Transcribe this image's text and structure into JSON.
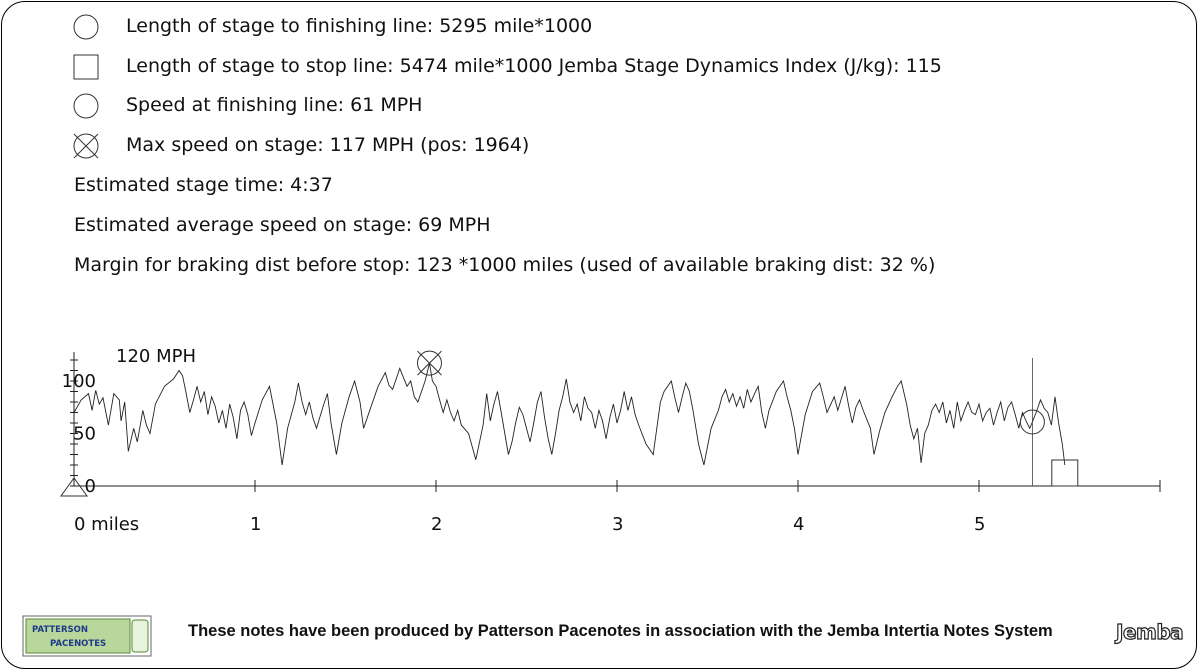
{
  "legend": {
    "finish_length": "Length of stage to finishing line: 5295 mile*1000",
    "stop_length": "Length of stage to stop line: 5474 mile*1000 Jemba Stage Dynamics Index (J/kg): 115",
    "finish_speed": "Speed at finishing line: 61 MPH",
    "max_speed": "Max speed on stage: 117 MPH (pos: 1964)"
  },
  "stats": {
    "stage_time": "Estimated stage time: 4:37",
    "avg_speed": "Estimated average speed on stage: 69 MPH",
    "braking_margin": "Margin for braking dist before stop: 123 *1000 miles (used of available braking dist: 32 %)"
  },
  "footer": {
    "credit": "These notes have been produced by Patterson Pacenotes in association with the Jemba Intertia Notes System",
    "logo_left_line1": "PATTERSON",
    "logo_left_line2": "PACENOTES",
    "logo_right": "Jemba"
  },
  "chart_data": {
    "type": "line",
    "title": "",
    "ylabel": "120 MPH",
    "xlabel": "",
    "x_tick_labels": [
      "0 miles",
      "1",
      "2",
      "3",
      "4",
      "5"
    ],
    "x_ticks": [
      0,
      1,
      2,
      3,
      4,
      5
    ],
    "y_tick_labels": [
      "100",
      "50",
      "0"
    ],
    "y_ticks": [
      100,
      50,
      0
    ],
    "xlim": [
      0,
      6
    ],
    "ylim": [
      0,
      120
    ],
    "finish_position": 5.295,
    "stop_position": 5.474,
    "max_speed_position": 1.964,
    "max_speed": 117,
    "finish_speed": 61,
    "series": [
      {
        "values": [
          [
            0.0,
            70
          ],
          [
            0.04,
            82
          ],
          [
            0.08,
            88
          ],
          [
            0.1,
            72
          ],
          [
            0.12,
            91
          ],
          [
            0.14,
            78
          ],
          [
            0.16,
            84
          ],
          [
            0.19,
            58
          ],
          [
            0.22,
            88
          ],
          [
            0.25,
            82
          ],
          [
            0.26,
            62
          ],
          [
            0.28,
            80
          ],
          [
            0.3,
            33
          ],
          [
            0.33,
            55
          ],
          [
            0.35,
            42
          ],
          [
            0.37,
            62
          ],
          [
            0.38,
            72
          ],
          [
            0.4,
            58
          ],
          [
            0.42,
            50
          ],
          [
            0.45,
            78
          ],
          [
            0.5,
            95
          ],
          [
            0.55,
            102
          ],
          [
            0.58,
            110
          ],
          [
            0.6,
            105
          ],
          [
            0.62,
            88
          ],
          [
            0.64,
            70
          ],
          [
            0.66,
            82
          ],
          [
            0.68,
            95
          ],
          [
            0.7,
            80
          ],
          [
            0.72,
            90
          ],
          [
            0.74,
            68
          ],
          [
            0.76,
            85
          ],
          [
            0.78,
            76
          ],
          [
            0.8,
            60
          ],
          [
            0.82,
            72
          ],
          [
            0.84,
            55
          ],
          [
            0.86,
            78
          ],
          [
            0.88,
            65
          ],
          [
            0.9,
            45
          ],
          [
            0.92,
            72
          ],
          [
            0.94,
            80
          ],
          [
            0.96,
            68
          ],
          [
            0.98,
            48
          ],
          [
            1.0,
            60
          ],
          [
            1.04,
            82
          ],
          [
            1.08,
            95
          ],
          [
            1.12,
            60
          ],
          [
            1.15,
            20
          ],
          [
            1.18,
            55
          ],
          [
            1.22,
            80
          ],
          [
            1.24,
            98
          ],
          [
            1.26,
            80
          ],
          [
            1.28,
            68
          ],
          [
            1.3,
            80
          ],
          [
            1.32,
            65
          ],
          [
            1.34,
            55
          ],
          [
            1.38,
            78
          ],
          [
            1.4,
            88
          ],
          [
            1.42,
            60
          ],
          [
            1.45,
            30
          ],
          [
            1.48,
            60
          ],
          [
            1.52,
            85
          ],
          [
            1.55,
            100
          ],
          [
            1.58,
            80
          ],
          [
            1.6,
            55
          ],
          [
            1.64,
            75
          ],
          [
            1.68,
            95
          ],
          [
            1.72,
            108
          ],
          [
            1.74,
            96
          ],
          [
            1.76,
            92
          ],
          [
            1.8,
            112
          ],
          [
            1.84,
            95
          ],
          [
            1.86,
            100
          ],
          [
            1.88,
            85
          ],
          [
            1.9,
            80
          ],
          [
            1.94,
            100
          ],
          [
            1.964,
            117
          ],
          [
            1.98,
            100
          ],
          [
            2.0,
            95
          ],
          [
            2.02,
            82
          ],
          [
            2.04,
            70
          ],
          [
            2.06,
            82
          ],
          [
            2.08,
            70
          ],
          [
            2.1,
            62
          ],
          [
            2.12,
            72
          ],
          [
            2.14,
            58
          ],
          [
            2.18,
            50
          ],
          [
            2.22,
            25
          ],
          [
            2.26,
            58
          ],
          [
            2.28,
            88
          ],
          [
            2.3,
            62
          ],
          [
            2.32,
            78
          ],
          [
            2.34,
            90
          ],
          [
            2.36,
            70
          ],
          [
            2.38,
            50
          ],
          [
            2.4,
            30
          ],
          [
            2.42,
            42
          ],
          [
            2.44,
            60
          ],
          [
            2.46,
            75
          ],
          [
            2.48,
            68
          ],
          [
            2.5,
            55
          ],
          [
            2.52,
            42
          ],
          [
            2.54,
            60
          ],
          [
            2.56,
            80
          ],
          [
            2.58,
            90
          ],
          [
            2.6,
            65
          ],
          [
            2.62,
            45
          ],
          [
            2.64,
            30
          ],
          [
            2.66,
            50
          ],
          [
            2.68,
            72
          ],
          [
            2.7,
            85
          ],
          [
            2.72,
            102
          ],
          [
            2.74,
            80
          ],
          [
            2.76,
            70
          ],
          [
            2.78,
            78
          ],
          [
            2.8,
            62
          ],
          [
            2.82,
            85
          ],
          [
            2.84,
            74
          ],
          [
            2.86,
            70
          ],
          [
            2.88,
            55
          ],
          [
            2.9,
            72
          ],
          [
            2.92,
            62
          ],
          [
            2.94,
            45
          ],
          [
            2.96,
            65
          ],
          [
            2.98,
            78
          ],
          [
            3.0,
            60
          ],
          [
            3.02,
            72
          ],
          [
            3.04,
            90
          ],
          [
            3.06,
            72
          ],
          [
            3.08,
            85
          ],
          [
            3.1,
            68
          ],
          [
            3.12,
            58
          ],
          [
            3.16,
            40
          ],
          [
            3.2,
            30
          ],
          [
            3.22,
            55
          ],
          [
            3.24,
            80
          ],
          [
            3.26,
            90
          ],
          [
            3.3,
            100
          ],
          [
            3.32,
            84
          ],
          [
            3.34,
            70
          ],
          [
            3.36,
            85
          ],
          [
            3.38,
            98
          ],
          [
            3.4,
            90
          ],
          [
            3.42,
            72
          ],
          [
            3.45,
            40
          ],
          [
            3.48,
            20
          ],
          [
            3.52,
            55
          ],
          [
            3.56,
            72
          ],
          [
            3.58,
            85
          ],
          [
            3.6,
            92
          ],
          [
            3.62,
            80
          ],
          [
            3.64,
            88
          ],
          [
            3.66,
            76
          ],
          [
            3.68,
            85
          ],
          [
            3.7,
            74
          ],
          [
            3.72,
            92
          ],
          [
            3.74,
            80
          ],
          [
            3.76,
            88
          ],
          [
            3.78,
            95
          ],
          [
            3.8,
            70
          ],
          [
            3.82,
            55
          ],
          [
            3.84,
            72
          ],
          [
            3.88,
            90
          ],
          [
            3.92,
            100
          ],
          [
            3.94,
            85
          ],
          [
            3.96,
            72
          ],
          [
            3.98,
            55
          ],
          [
            4.0,
            30
          ],
          [
            4.04,
            68
          ],
          [
            4.08,
            90
          ],
          [
            4.12,
            98
          ],
          [
            4.14,
            85
          ],
          [
            4.16,
            70
          ],
          [
            4.2,
            85
          ],
          [
            4.22,
            72
          ],
          [
            4.26,
            95
          ],
          [
            4.28,
            76
          ],
          [
            4.3,
            60
          ],
          [
            4.32,
            75
          ],
          [
            4.34,
            82
          ],
          [
            4.36,
            72
          ],
          [
            4.4,
            55
          ],
          [
            4.42,
            30
          ],
          [
            4.45,
            52
          ],
          [
            4.48,
            70
          ],
          [
            4.52,
            85
          ],
          [
            4.55,
            95
          ],
          [
            4.57,
            100
          ],
          [
            4.6,
            78
          ],
          [
            4.62,
            58
          ],
          [
            4.64,
            45
          ],
          [
            4.66,
            55
          ],
          [
            4.68,
            22
          ],
          [
            4.7,
            50
          ],
          [
            4.72,
            58
          ],
          [
            4.74,
            72
          ],
          [
            4.76,
            78
          ],
          [
            4.78,
            70
          ],
          [
            4.8,
            80
          ],
          [
            4.82,
            60
          ],
          [
            4.84,
            72
          ],
          [
            4.86,
            55
          ],
          [
            4.88,
            80
          ],
          [
            4.9,
            62
          ],
          [
            4.92,
            72
          ],
          [
            4.94,
            80
          ],
          [
            4.96,
            70
          ],
          [
            4.98,
            68
          ],
          [
            5.0,
            78
          ],
          [
            5.02,
            62
          ],
          [
            5.04,
            70
          ],
          [
            5.06,
            74
          ],
          [
            5.08,
            58
          ],
          [
            5.1,
            70
          ],
          [
            5.12,
            80
          ],
          [
            5.14,
            62
          ],
          [
            5.16,
            75
          ],
          [
            5.18,
            80
          ],
          [
            5.2,
            68
          ],
          [
            5.22,
            55
          ],
          [
            5.24,
            70
          ],
          [
            5.26,
            62
          ],
          [
            5.28,
            55
          ],
          [
            5.295,
            61
          ],
          [
            5.32,
            72
          ],
          [
            5.34,
            82
          ],
          [
            5.36,
            74
          ],
          [
            5.38,
            70
          ],
          [
            5.4,
            58
          ],
          [
            5.42,
            85
          ],
          [
            5.44,
            60
          ],
          [
            5.46,
            40
          ],
          [
            5.474,
            20
          ]
        ]
      }
    ]
  }
}
